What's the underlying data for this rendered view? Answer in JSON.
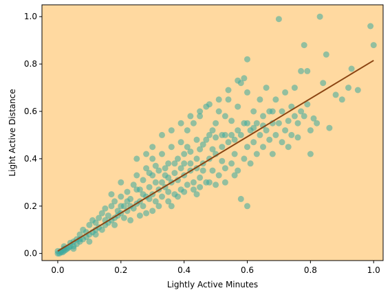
{
  "chart_data": {
    "type": "scatter",
    "xlabel": "Lightly Active Minutes",
    "ylabel": "Light Active Distance",
    "xlim": [
      -0.05,
      1.03
    ],
    "ylim": [
      -0.03,
      1.05
    ],
    "x_ticks": [
      0.0,
      0.2,
      0.4,
      0.6,
      0.8,
      1.0
    ],
    "y_ticks": [
      0.0,
      0.2,
      0.4,
      0.6,
      0.8,
      1.0
    ],
    "x_tick_labels": [
      "0.0",
      "0.2",
      "0.4",
      "0.6",
      "0.8",
      "1.0"
    ],
    "y_tick_labels": [
      "0.0",
      "0.2",
      "0.4",
      "0.6",
      "0.8",
      "1.0"
    ],
    "plot_background": "#ffd9a0",
    "point_color": "#3aaa9e",
    "line_color": "#8b4513",
    "fit_line": {
      "x": [
        0.0,
        1.0
      ],
      "y": [
        0.01,
        0.815
      ]
    },
    "points": [
      [
        0.0,
        0.0
      ],
      [
        0.005,
        0.0
      ],
      [
        0.01,
        0.005
      ],
      [
        0.01,
        0.01
      ],
      [
        0.015,
        0.005
      ],
      [
        0.02,
        0.01
      ],
      [
        0.02,
        0.02
      ],
      [
        0.025,
        0.015
      ],
      [
        0.03,
        0.02
      ],
      [
        0.035,
        0.025
      ],
      [
        0.04,
        0.03
      ],
      [
        0.04,
        0.045
      ],
      [
        0.05,
        0.03
      ],
      [
        0.05,
        0.05
      ],
      [
        0.06,
        0.04
      ],
      [
        0.06,
        0.06
      ],
      [
        0.07,
        0.05
      ],
      [
        0.07,
        0.08
      ],
      [
        0.08,
        0.06
      ],
      [
        0.08,
        0.1
      ],
      [
        0.09,
        0.07
      ],
      [
        0.09,
        0.09
      ],
      [
        0.1,
        0.08
      ],
      [
        0.1,
        0.12
      ],
      [
        0.11,
        0.09
      ],
      [
        0.11,
        0.14
      ],
      [
        0.12,
        0.1
      ],
      [
        0.12,
        0.13
      ],
      [
        0.13,
        0.11
      ],
      [
        0.13,
        0.15
      ],
      [
        0.14,
        0.1
      ],
      [
        0.14,
        0.17
      ],
      [
        0.15,
        0.12
      ],
      [
        0.15,
        0.19
      ],
      [
        0.16,
        0.13
      ],
      [
        0.16,
        0.16
      ],
      [
        0.17,
        0.14
      ],
      [
        0.17,
        0.2
      ],
      [
        0.18,
        0.15
      ],
      [
        0.18,
        0.22
      ],
      [
        0.19,
        0.16
      ],
      [
        0.19,
        0.18
      ],
      [
        0.2,
        0.17
      ],
      [
        0.2,
        0.24
      ],
      [
        0.21,
        0.15
      ],
      [
        0.21,
        0.2
      ],
      [
        0.22,
        0.18
      ],
      [
        0.22,
        0.26
      ],
      [
        0.23,
        0.2
      ],
      [
        0.23,
        0.23
      ],
      [
        0.24,
        0.19
      ],
      [
        0.24,
        0.29
      ],
      [
        0.25,
        0.21
      ],
      [
        0.25,
        0.33
      ],
      [
        0.26,
        0.22
      ],
      [
        0.26,
        0.27
      ],
      [
        0.27,
        0.2
      ],
      [
        0.27,
        0.31
      ],
      [
        0.28,
        0.24
      ],
      [
        0.28,
        0.36
      ],
      [
        0.29,
        0.23
      ],
      [
        0.29,
        0.28
      ],
      [
        0.3,
        0.25
      ],
      [
        0.3,
        0.4
      ],
      [
        0.31,
        0.22
      ],
      [
        0.31,
        0.3
      ],
      [
        0.32,
        0.27
      ],
      [
        0.32,
        0.35
      ],
      [
        0.33,
        0.24
      ],
      [
        0.33,
        0.42
      ],
      [
        0.34,
        0.28
      ],
      [
        0.34,
        0.33
      ],
      [
        0.35,
        0.26
      ],
      [
        0.35,
        0.38
      ],
      [
        0.36,
        0.3
      ],
      [
        0.36,
        0.45
      ],
      [
        0.37,
        0.25
      ],
      [
        0.37,
        0.34
      ],
      [
        0.38,
        0.31
      ],
      [
        0.38,
        0.4
      ],
      [
        0.39,
        0.27
      ],
      [
        0.39,
        0.47
      ],
      [
        0.4,
        0.33
      ],
      [
        0.4,
        0.38
      ],
      [
        0.41,
        0.29
      ],
      [
        0.41,
        0.52
      ],
      [
        0.42,
        0.35
      ],
      [
        0.42,
        0.43
      ],
      [
        0.43,
        0.3
      ],
      [
        0.43,
        0.55
      ],
      [
        0.44,
        0.36
      ],
      [
        0.44,
        0.4
      ],
      [
        0.45,
        0.32
      ],
      [
        0.45,
        0.58
      ],
      [
        0.46,
        0.38
      ],
      [
        0.46,
        0.46
      ],
      [
        0.47,
        0.3
      ],
      [
        0.47,
        0.62
      ],
      [
        0.48,
        0.4
      ],
      [
        0.48,
        0.5
      ],
      [
        0.49,
        0.35
      ],
      [
        0.49,
        0.44
      ],
      [
        0.5,
        0.42
      ],
      [
        0.5,
        0.55
      ],
      [
        0.51,
        0.33
      ],
      [
        0.51,
        0.6
      ],
      [
        0.52,
        0.45
      ],
      [
        0.52,
        0.39
      ],
      [
        0.53,
        0.36
      ],
      [
        0.53,
        0.5
      ],
      [
        0.54,
        0.47
      ],
      [
        0.54,
        0.65
      ],
      [
        0.55,
        0.38
      ],
      [
        0.55,
        0.56
      ],
      [
        0.56,
        0.48
      ],
      [
        0.56,
        0.42
      ],
      [
        0.57,
        0.35
      ],
      [
        0.57,
        0.62
      ],
      [
        0.58,
        0.5
      ],
      [
        0.58,
        0.72
      ],
      [
        0.59,
        0.4
      ],
      [
        0.59,
        0.55
      ],
      [
        0.6,
        0.45
      ],
      [
        0.6,
        0.68
      ],
      [
        0.61,
        0.52
      ],
      [
        0.61,
        0.38
      ],
      [
        0.62,
        0.47
      ],
      [
        0.62,
        0.6
      ],
      [
        0.63,
        0.55
      ],
      [
        0.63,
        0.42
      ],
      [
        0.64,
        0.5
      ],
      [
        0.64,
        0.65
      ],
      [
        0.65,
        0.45
      ],
      [
        0.65,
        0.58
      ],
      [
        0.66,
        0.52
      ],
      [
        0.66,
        0.7
      ],
      [
        0.67,
        0.48
      ],
      [
        0.67,
        0.6
      ],
      [
        0.68,
        0.55
      ],
      [
        0.68,
        0.42
      ],
      [
        0.69,
        0.5
      ],
      [
        0.69,
        0.65
      ],
      [
        0.7,
        0.99
      ],
      [
        0.7,
        0.55
      ],
      [
        0.71,
        0.47
      ],
      [
        0.71,
        0.6
      ],
      [
        0.72,
        0.52
      ],
      [
        0.72,
        0.68
      ],
      [
        0.73,
        0.56
      ],
      [
        0.73,
        0.45
      ],
      [
        0.74,
        0.5
      ],
      [
        0.74,
        0.62
      ],
      [
        0.75,
        0.7
      ],
      [
        0.75,
        0.58
      ],
      [
        0.76,
        0.49
      ],
      [
        0.76,
        0.55
      ],
      [
        0.77,
        0.6
      ],
      [
        0.77,
        0.77
      ],
      [
        0.78,
        0.88
      ],
      [
        0.78,
        0.58
      ],
      [
        0.79,
        0.63
      ],
      [
        0.79,
        0.77
      ],
      [
        0.8,
        0.52
      ],
      [
        0.8,
        0.42
      ],
      [
        0.81,
        0.57
      ],
      [
        0.82,
        0.55
      ],
      [
        0.83,
        1.0
      ],
      [
        0.84,
        0.72
      ],
      [
        0.85,
        0.84
      ],
      [
        0.86,
        0.53
      ],
      [
        0.88,
        0.67
      ],
      [
        0.9,
        0.65
      ],
      [
        0.92,
        0.7
      ],
      [
        0.93,
        0.78
      ],
      [
        0.95,
        0.69
      ],
      [
        0.99,
        0.96
      ],
      [
        1.0,
        0.88
      ],
      [
        0.0,
        0.01
      ],
      [
        0.02,
        0.03
      ],
      [
        0.05,
        0.02
      ],
      [
        0.07,
        0.06
      ],
      [
        0.1,
        0.05
      ],
      [
        0.12,
        0.08
      ],
      [
        0.15,
        0.14
      ],
      [
        0.18,
        0.12
      ],
      [
        0.2,
        0.2
      ],
      [
        0.22,
        0.22
      ],
      [
        0.25,
        0.27
      ],
      [
        0.27,
        0.25
      ],
      [
        0.3,
        0.33
      ],
      [
        0.33,
        0.3
      ],
      [
        0.35,
        0.32
      ],
      [
        0.37,
        0.38
      ],
      [
        0.4,
        0.42
      ],
      [
        0.42,
        0.38
      ],
      [
        0.45,
        0.44
      ],
      [
        0.47,
        0.48
      ],
      [
        0.5,
        0.49
      ],
      [
        0.52,
        0.5
      ],
      [
        0.55,
        0.5
      ],
      [
        0.57,
        0.52
      ],
      [
        0.6,
        0.55
      ],
      [
        0.62,
        0.53
      ],
      [
        0.65,
        0.54
      ],
      [
        0.68,
        0.6
      ],
      [
        0.3,
        0.18
      ],
      [
        0.32,
        0.2
      ],
      [
        0.35,
        0.22
      ],
      [
        0.38,
        0.24
      ],
      [
        0.4,
        0.26
      ],
      [
        0.43,
        0.27
      ],
      [
        0.45,
        0.28
      ],
      [
        0.48,
        0.3
      ],
      [
        0.5,
        0.29
      ],
      [
        0.53,
        0.3
      ],
      [
        0.56,
        0.33
      ],
      [
        0.58,
        0.23
      ],
      [
        0.6,
        0.2
      ],
      [
        0.3,
        0.45
      ],
      [
        0.33,
        0.5
      ],
      [
        0.36,
        0.52
      ],
      [
        0.39,
        0.55
      ],
      [
        0.42,
        0.58
      ],
      [
        0.45,
        0.6
      ],
      [
        0.48,
        0.63
      ],
      [
        0.51,
        0.65
      ],
      [
        0.54,
        0.69
      ],
      [
        0.57,
        0.73
      ],
      [
        0.59,
        0.74
      ],
      [
        0.6,
        0.82
      ],
      [
        0.25,
        0.4
      ],
      [
        0.28,
        0.42
      ],
      [
        0.2,
        0.3
      ],
      [
        0.17,
        0.25
      ],
      [
        0.23,
        0.14
      ],
      [
        0.26,
        0.16
      ],
      [
        0.28,
        0.17
      ],
      [
        0.36,
        0.2
      ],
      [
        0.44,
        0.25
      ],
      [
        0.46,
        0.35
      ],
      [
        0.34,
        0.36
      ],
      [
        0.29,
        0.34
      ],
      [
        0.31,
        0.37
      ],
      [
        0.39,
        0.36
      ],
      [
        0.41,
        0.45
      ],
      [
        0.44,
        0.48
      ],
      [
        0.49,
        0.52
      ],
      [
        0.53,
        0.58
      ]
    ]
  }
}
